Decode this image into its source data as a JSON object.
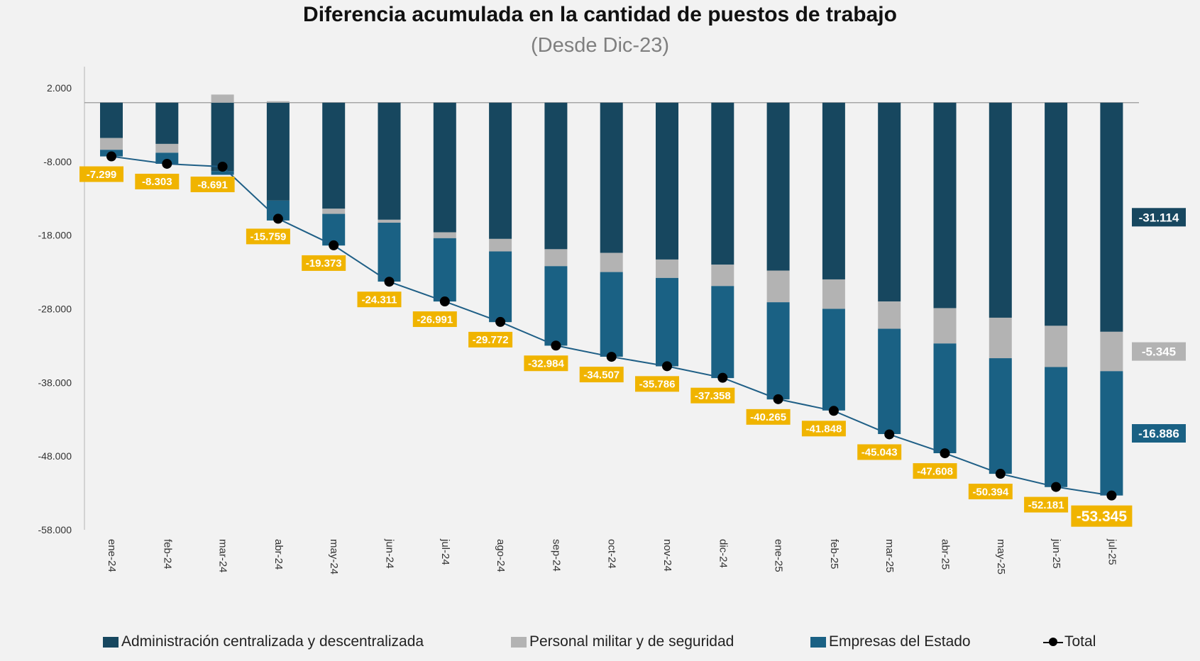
{
  "chart_data": {
    "type": "bar",
    "stacked": true,
    "title": "Diferencia acumulada en la cantidad de puestos de trabajo",
    "subtitle": "(Desde Dic-23)",
    "categories": [
      "ene-24",
      "feb-24",
      "mar-24",
      "abr-24",
      "may-24",
      "jun-24",
      "jul-24",
      "ago-24",
      "sep-24",
      "oct-24",
      "nov-24",
      "dic-24",
      "ene-25",
      "feb-25",
      "mar-25",
      "abr-25",
      "may-25",
      "jun-25",
      "jul-25"
    ],
    "series": [
      {
        "name": "Administración centralizada y descentralizada",
        "color": "#17475f",
        "values": [
          -4800,
          -5600,
          -9300,
          -13300,
          -14400,
          -15900,
          -17600,
          -18500,
          -19900,
          -20400,
          -21300,
          -22000,
          -22800,
          -24000,
          -27000,
          -27900,
          -29200,
          -30300,
          -31114
        ]
      },
      {
        "name": "Personal militar y de seguridad",
        "color": "#b3b3b3",
        "values": [
          -1600,
          -1200,
          1100,
          200,
          -700,
          -400,
          -800,
          -1700,
          -2300,
          -2600,
          -2500,
          -2900,
          -4300,
          -4000,
          -3700,
          -4800,
          -5500,
          -5600,
          -5345
        ]
      },
      {
        "name": "Empresas del Estado",
        "color": "#1a6184",
        "values": [
          -900,
          -1500,
          -500,
          -2700,
          -4300,
          -8000,
          -8600,
          -9600,
          -10800,
          -11500,
          -12000,
          -12500,
          -13200,
          -13800,
          -14300,
          -14900,
          -15700,
          -16300,
          -16886
        ]
      }
    ],
    "total": {
      "name": "Total",
      "values": [
        -7299,
        -8303,
        -8691,
        -15759,
        -19373,
        -24311,
        -26991,
        -29772,
        -32984,
        -34507,
        -35786,
        -37358,
        -40265,
        -41848,
        -45043,
        -47608,
        -50394,
        -52181,
        -53345
      ],
      "labels": [
        "-7.299",
        "-8.303",
        "-8.691",
        "-15.759",
        "-19.373",
        "-24.311",
        "-26.991",
        "-29.772",
        "-32.984",
        "-34.507",
        "-35.786",
        "-37.358",
        "-40.265",
        "-41.848",
        "-45.043",
        "-47.608",
        "-50.394",
        "-52.181",
        "-53.345"
      ]
    },
    "end_labels": [
      "-31.114",
      "-5.345",
      "-16.886"
    ],
    "y_ticks": [
      2000,
      -8000,
      -18000,
      -28000,
      -38000,
      -48000,
      -58000
    ],
    "y_tick_labels": [
      "2.000",
      "-8.000",
      "-18.000",
      "-28.000",
      "-38.000",
      "-48.000",
      "-58.000"
    ],
    "ylim": [
      -58000,
      2000
    ],
    "label_color": "#f0b400",
    "legend_position": "bottom"
  }
}
